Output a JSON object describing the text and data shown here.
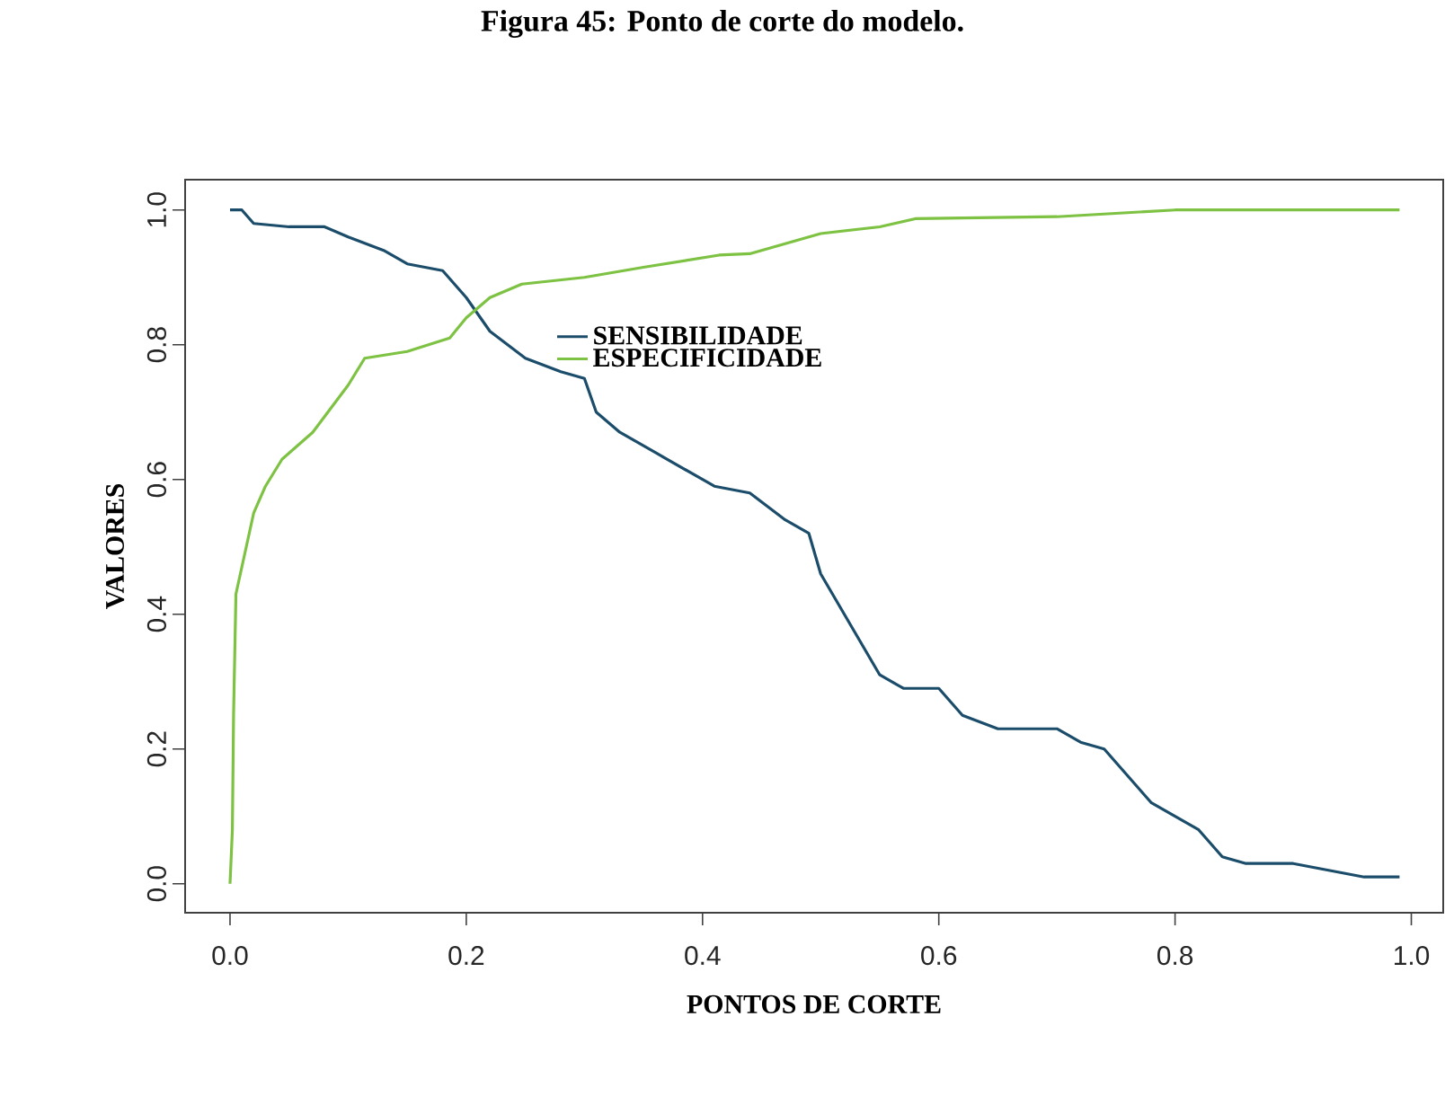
{
  "chart_data": {
    "type": "line",
    "title": "Figura 45: Ponto de corte do modelo.",
    "xlabel": "PONTOS DE CORTE",
    "ylabel": "VALORES",
    "xlim": [
      -0.038,
      1.027
    ],
    "ylim": [
      -0.043,
      1.045
    ],
    "xticks": [
      {
        "value": 0,
        "label": "0.0"
      },
      {
        "value": 0.2,
        "label": "0.2"
      },
      {
        "value": 0.4,
        "label": "0.4"
      },
      {
        "value": 0.6,
        "label": "0.6"
      },
      {
        "value": 0.8,
        "label": "0.8"
      },
      {
        "value": 1,
        "label": "1.0"
      }
    ],
    "yticks": [
      {
        "value": 0,
        "label": "0.0"
      },
      {
        "value": 0.2,
        "label": "0.2"
      },
      {
        "value": 0.4,
        "label": "0.4"
      },
      {
        "value": 0.6,
        "label": "0.6"
      },
      {
        "value": 0.8,
        "label": "0.8"
      },
      {
        "value": 1,
        "label": "1.0"
      }
    ],
    "legend": "top",
    "grid": false,
    "line_style": "solid",
    "series": [
      {
        "name": "SENSIBILIDADE",
        "color": "#1b4d6b",
        "x": [
          0,
          0.01,
          0.02,
          0.05,
          0.08,
          0.1,
          0.13,
          0.15,
          0.18,
          0.2,
          0.22,
          0.25,
          0.28,
          0.3,
          0.31,
          0.33,
          0.36,
          0.4,
          0.41,
          0.44,
          0.47,
          0.49,
          0.5,
          0.53,
          0.55,
          0.57,
          0.6,
          0.62,
          0.65,
          0.7,
          0.72,
          0.74,
          0.77,
          0.78,
          0.8,
          0.82,
          0.84,
          0.86,
          0.9,
          0.93,
          0.96,
          0.99
        ],
        "values": [
          1.0,
          1.0,
          0.98,
          0.975,
          0.975,
          0.96,
          0.94,
          0.92,
          0.91,
          0.87,
          0.82,
          0.78,
          0.76,
          0.75,
          0.7,
          0.67,
          0.64,
          0.6,
          0.59,
          0.58,
          0.54,
          0.52,
          0.46,
          0.37,
          0.31,
          0.29,
          0.29,
          0.25,
          0.23,
          0.23,
          0.21,
          0.2,
          0.14,
          0.12,
          0.1,
          0.08,
          0.04,
          0.03,
          0.03,
          0.02,
          0.01,
          0.01
        ]
      },
      {
        "name": "ESPECIFICIDADE",
        "color": "#7dc242",
        "x": [
          0,
          0.002,
          0.003,
          0.005,
          0.01,
          0.02,
          0.03,
          0.044,
          0.07,
          0.1,
          0.114,
          0.15,
          0.186,
          0.2,
          0.22,
          0.247,
          0.3,
          0.35,
          0.414,
          0.44,
          0.47,
          0.5,
          0.55,
          0.58,
          0.7,
          0.8,
          0.99
        ],
        "values": [
          0,
          0.08,
          0.25,
          0.43,
          0.47,
          0.55,
          0.59,
          0.63,
          0.67,
          0.74,
          0.78,
          0.79,
          0.81,
          0.84,
          0.87,
          0.89,
          0.9,
          0.915,
          0.933,
          0.935,
          0.95,
          0.965,
          0.975,
          0.987,
          0.99,
          1.0,
          1.0
        ]
      }
    ]
  }
}
